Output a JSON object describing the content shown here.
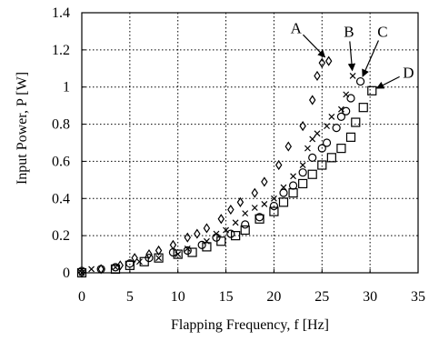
{
  "chart_data": {
    "type": "scatter",
    "xlabel": "Flapping Frequency, f  [Hz]",
    "ylabel": "Input Power, P  [W]",
    "xlim": [
      0,
      35
    ],
    "ylim": [
      0,
      1.4
    ],
    "xticks": [
      0,
      5,
      10,
      15,
      20,
      25,
      30,
      35
    ],
    "xtick_labels": [
      "0",
      "5",
      "10",
      "15",
      "20",
      "25",
      "30",
      "35"
    ],
    "yticks": [
      0,
      0.2,
      0.4,
      0.6,
      0.8,
      1.0,
      1.2,
      1.4
    ],
    "ytick_labels": [
      "0",
      "0.2",
      "0.4",
      "0.6",
      "0.8",
      "1",
      "1.2",
      "1.4"
    ],
    "grid": true,
    "series": [
      {
        "marker": "diamond",
        "points": [
          [
            0,
            0.0
          ],
          [
            2,
            0.02
          ],
          [
            4,
            0.04
          ],
          [
            5.5,
            0.08
          ],
          [
            7,
            0.1
          ],
          [
            8,
            0.12
          ],
          [
            9.5,
            0.15
          ],
          [
            11,
            0.19
          ],
          [
            12,
            0.21
          ],
          [
            13,
            0.24
          ],
          [
            14.5,
            0.29
          ],
          [
            15.5,
            0.34
          ],
          [
            16.5,
            0.38
          ],
          [
            18,
            0.43
          ],
          [
            19,
            0.49
          ],
          [
            20.5,
            0.58
          ],
          [
            21.5,
            0.68
          ],
          [
            23,
            0.79
          ],
          [
            24,
            0.93
          ],
          [
            24.5,
            1.06
          ],
          [
            25,
            1.13
          ],
          [
            25.7,
            1.14
          ]
        ]
      },
      {
        "marker": "cross",
        "points": [
          [
            0,
            0.0
          ],
          [
            1,
            0.02
          ],
          [
            3.5,
            0.03
          ],
          [
            6,
            0.06
          ],
          [
            8,
            0.08
          ],
          [
            10,
            0.1
          ],
          [
            11,
            0.13
          ],
          [
            13,
            0.17
          ],
          [
            14,
            0.21
          ],
          [
            15,
            0.23
          ],
          [
            16,
            0.27
          ],
          [
            17,
            0.32
          ],
          [
            18,
            0.35
          ],
          [
            19,
            0.37
          ],
          [
            20,
            0.4
          ],
          [
            21,
            0.46
          ],
          [
            22,
            0.52
          ],
          [
            23,
            0.58
          ],
          [
            23.5,
            0.67
          ],
          [
            24,
            0.72
          ],
          [
            24.5,
            0.75
          ],
          [
            25.5,
            0.79
          ],
          [
            26,
            0.84
          ],
          [
            27,
            0.88
          ],
          [
            27.5,
            0.96
          ],
          [
            28.2,
            1.06
          ]
        ]
      },
      {
        "marker": "circle",
        "points": [
          [
            0,
            0.01
          ],
          [
            2,
            0.02
          ],
          [
            3.5,
            0.03
          ],
          [
            5,
            0.05
          ],
          [
            7,
            0.08
          ],
          [
            9.5,
            0.11
          ],
          [
            11,
            0.12
          ],
          [
            12.5,
            0.15
          ],
          [
            14,
            0.19
          ],
          [
            15.5,
            0.21
          ],
          [
            17,
            0.26
          ],
          [
            18.5,
            0.3
          ],
          [
            20,
            0.36
          ],
          [
            21,
            0.43
          ],
          [
            22,
            0.47
          ],
          [
            23,
            0.54
          ],
          [
            24,
            0.62
          ],
          [
            25,
            0.67
          ],
          [
            25.5,
            0.7
          ],
          [
            26.5,
            0.78
          ],
          [
            27,
            0.84
          ],
          [
            27.5,
            0.87
          ],
          [
            28,
            0.94
          ],
          [
            29,
            1.03
          ]
        ]
      },
      {
        "marker": "square",
        "points": [
          [
            0,
            0.0
          ],
          [
            3.5,
            0.02
          ],
          [
            5,
            0.04
          ],
          [
            6.5,
            0.06
          ],
          [
            8,
            0.08
          ],
          [
            10,
            0.1
          ],
          [
            11.5,
            0.11
          ],
          [
            13,
            0.14
          ],
          [
            14.5,
            0.17
          ],
          [
            16,
            0.2
          ],
          [
            17,
            0.23
          ],
          [
            18.5,
            0.29
          ],
          [
            20,
            0.33
          ],
          [
            21,
            0.38
          ],
          [
            22,
            0.43
          ],
          [
            23,
            0.48
          ],
          [
            24,
            0.53
          ],
          [
            25,
            0.58
          ],
          [
            26,
            0.62
          ],
          [
            27,
            0.67
          ],
          [
            28,
            0.73
          ],
          [
            28.5,
            0.81
          ],
          [
            29.3,
            0.89
          ],
          [
            30.2,
            0.98
          ]
        ]
      }
    ],
    "annotations": [
      {
        "text": "A",
        "target": [
          25.7,
          1.14
        ],
        "label_at": [
          22.3,
          1.32
        ]
      },
      {
        "text": "B",
        "target": [
          28.2,
          1.06
        ],
        "label_at": [
          27.8,
          1.3
        ]
      },
      {
        "text": "C",
        "target": [
          29.0,
          1.03
        ],
        "label_at": [
          31.3,
          1.3
        ]
      },
      {
        "text": "D",
        "target": [
          30.2,
          0.98
        ],
        "label_at": [
          34.0,
          1.08
        ]
      }
    ]
  }
}
